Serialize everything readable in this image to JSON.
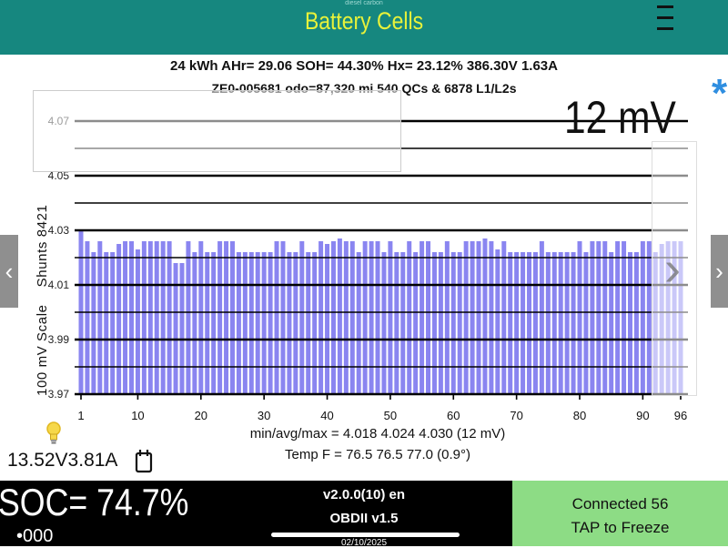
{
  "header": {
    "title": "Battery Cells",
    "caption": "diesel carbon",
    "bg_color": "#16877f",
    "title_color": "#e8f23a"
  },
  "stats": {
    "line1": "24 kWh  AHr= 29.06  SOH= 44.30%   Hx= 23.12%   386.30V 1.63A",
    "line2": "ZE0-005681 odo=87,320 mi  540 QCs & 6878 L1/L2s"
  },
  "scale_label": "12 mV",
  "asterisk": "*",
  "rotated_label": "100 mV Scale    Shunts 8421",
  "chart_data": {
    "type": "bar",
    "bar_color": "#8a85f0",
    "ylim": [
      3.97,
      4.07
    ],
    "ytick_labels": [
      "4.07",
      "4.05",
      "4.03",
      "4.01",
      "3.99",
      "3.97"
    ],
    "ytick_values": [
      4.07,
      4.05,
      4.03,
      4.01,
      3.99,
      3.97
    ],
    "xtick_labels": [
      "1",
      "10",
      "20",
      "30",
      "40",
      "50",
      "60",
      "70",
      "80",
      "90",
      "96"
    ],
    "xtick_values": [
      1,
      10,
      20,
      30,
      40,
      50,
      60,
      70,
      80,
      90,
      96
    ],
    "x_start": 1,
    "values": [
      4.03,
      4.026,
      4.022,
      4.026,
      4.022,
      4.022,
      4.025,
      4.026,
      4.026,
      4.023,
      4.026,
      4.026,
      4.026,
      4.026,
      4.026,
      4.018,
      4.018,
      4.026,
      4.022,
      4.026,
      4.022,
      4.022,
      4.026,
      4.026,
      4.026,
      4.022,
      4.022,
      4.022,
      4.022,
      4.022,
      4.022,
      4.026,
      4.026,
      4.022,
      4.022,
      4.026,
      4.022,
      4.022,
      4.026,
      4.025,
      4.026,
      4.027,
      4.026,
      4.026,
      4.022,
      4.026,
      4.026,
      4.026,
      4.022,
      4.026,
      4.022,
      4.022,
      4.026,
      4.022,
      4.026,
      4.026,
      4.022,
      4.022,
      4.026,
      4.022,
      4.022,
      4.026,
      4.026,
      4.026,
      4.027,
      4.026,
      4.023,
      4.026,
      4.022,
      4.022,
      4.022,
      4.022,
      4.022,
      4.026,
      4.022,
      4.022,
      4.022,
      4.022,
      4.022,
      4.026,
      4.022,
      4.026,
      4.026,
      4.026,
      4.022,
      4.026,
      4.026,
      4.022,
      4.022,
      4.026,
      4.026,
      4.022,
      4.025,
      4.026,
      4.026,
      4.026
    ]
  },
  "summary": {
    "minmax": "min/avg/max = 4.018 4.024 4.030  (12 mV)",
    "temp": "Temp F = 76.5  76.5  77.0  (0.9°)"
  },
  "aux": {
    "readout": "13.52V3.81A",
    "bulb_icon": "lightbulb-icon",
    "calendar_icon": "calendar-icon"
  },
  "footer": {
    "soc": "SOC= 74.7%",
    "dots": "•000",
    "version": "v2.0.0(10) en",
    "obd": "OBDII  v1.5",
    "date": "02/10/2025",
    "connected": "Connected 56",
    "tap": "TAP to Freeze",
    "right_bg": "#8ddc85"
  },
  "nav": {
    "left": "‹",
    "right": "›"
  }
}
